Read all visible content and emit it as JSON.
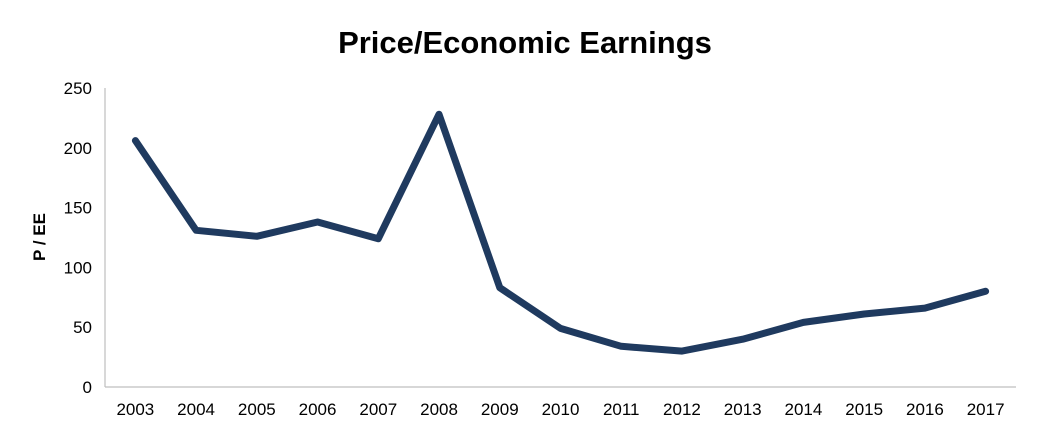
{
  "chart_data": {
    "type": "line",
    "title": "Price/Economic Earnings",
    "xlabel": "",
    "ylabel": "P / EE",
    "ylim": [
      0,
      250
    ],
    "yticks": [
      0,
      50,
      100,
      150,
      200,
      250
    ],
    "grid": false,
    "legend": "none",
    "categories": [
      "2003",
      "2004",
      "2005",
      "2006",
      "2007",
      "2008",
      "2009",
      "2010",
      "2011",
      "2012",
      "2013",
      "2014",
      "2015",
      "2016",
      "2017"
    ],
    "series": [
      {
        "values": [
          206,
          131,
          126,
          138,
          124,
          228,
          83,
          49,
          34,
          30,
          40,
          54,
          61,
          66,
          80
        ],
        "color": "#1f3a5f"
      }
    ],
    "axis_color": "#bfbfbf"
  }
}
